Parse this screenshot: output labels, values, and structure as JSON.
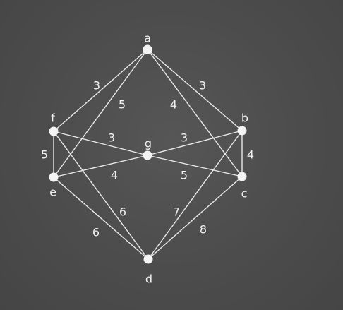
{
  "graph": {
    "nodes": [
      {
        "id": "a",
        "label": "a"
      },
      {
        "id": "b",
        "label": "b"
      },
      {
        "id": "c",
        "label": "c"
      },
      {
        "id": "d",
        "label": "d"
      },
      {
        "id": "e",
        "label": "e"
      },
      {
        "id": "f",
        "label": "f"
      },
      {
        "id": "g",
        "label": "g"
      }
    ],
    "edges": [
      {
        "from": "a",
        "to": "f",
        "weight": "3"
      },
      {
        "from": "a",
        "to": "e",
        "weight": "5"
      },
      {
        "from": "a",
        "to": "c",
        "weight": "4"
      },
      {
        "from": "a",
        "to": "b",
        "weight": "3"
      },
      {
        "from": "f",
        "to": "g",
        "weight": "3"
      },
      {
        "from": "g",
        "to": "b",
        "weight": "3"
      },
      {
        "from": "f",
        "to": "e",
        "weight": "5"
      },
      {
        "from": "b",
        "to": "c",
        "weight": "4"
      },
      {
        "from": "e",
        "to": "g",
        "weight": "4"
      },
      {
        "from": "g",
        "to": "c",
        "weight": "5"
      },
      {
        "from": "f",
        "to": "d",
        "weight": "6"
      },
      {
        "from": "e",
        "to": "d",
        "weight": "6"
      },
      {
        "from": "b",
        "to": "d",
        "weight": "7"
      },
      {
        "from": "c",
        "to": "d",
        "weight": "8"
      }
    ]
  }
}
